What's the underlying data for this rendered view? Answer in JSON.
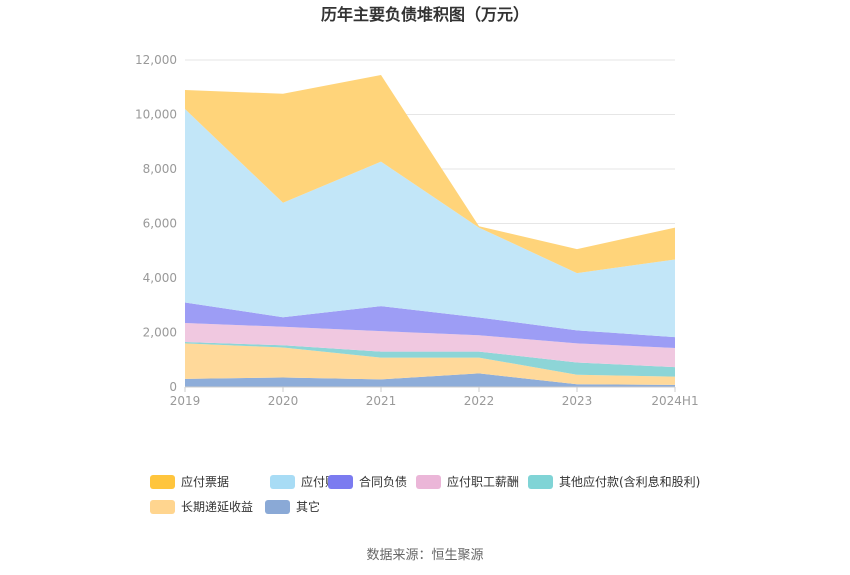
{
  "chart_data": {
    "type": "area",
    "stacked": true,
    "title": "历年主要负债堆积图（万元）",
    "categories": [
      "2019",
      "2020",
      "2021",
      "2022",
      "2023",
      "2024H1"
    ],
    "ylim": [
      0,
      12000
    ],
    "yticks": [
      0,
      2000,
      4000,
      6000,
      8000,
      10000,
      12000
    ],
    "ytick_labels": [
      "0",
      "2,000",
      "4,000",
      "6,000",
      "8,000",
      "10,000",
      "12,000"
    ],
    "grid": true,
    "legend_position": "bottom",
    "series": [
      {
        "name": "其它",
        "color": "#8eadd9",
        "values": [
          300,
          350,
          280,
          500,
          100,
          80
        ]
      },
      {
        "name": "长期递延收益",
        "color": "#ffd99a",
        "values": [
          1300,
          1100,
          800,
          580,
          350,
          300
        ]
      },
      {
        "name": "其他应付款(含利息和股利)",
        "color": "#8dd5d7",
        "values": [
          50,
          80,
          220,
          220,
          450,
          350
        ]
      },
      {
        "name": "应付职工薪酬",
        "color": "#f0c8e0",
        "values": [
          700,
          680,
          750,
          600,
          700,
          700
        ]
      },
      {
        "name": "合同负债",
        "color": "#9d9df5",
        "values": [
          750,
          350,
          920,
          650,
          480,
          400
        ]
      },
      {
        "name": "应付账款",
        "color": "#c2e6f8",
        "values": [
          7100,
          4200,
          5300,
          3300,
          2100,
          2850
        ]
      },
      {
        "name": "应付票据",
        "color": "#ffd47a",
        "values": [
          700,
          4000,
          3180,
          50,
          880,
          1170
        ]
      }
    ],
    "legend_order": [
      "应付票据",
      "应付账款",
      "合同负债",
      "应付职工薪酬",
      "其他应付款(含利息和股利)",
      "长期递延收益",
      "其它"
    ],
    "legend_colors": [
      "#ffc53d",
      "#a8dcf5",
      "#7b7bf0",
      "#ebb6d8",
      "#80d4d6",
      "#ffd58f",
      "#8aa9d6"
    ]
  },
  "source_text": "数据来源：恒生聚源"
}
